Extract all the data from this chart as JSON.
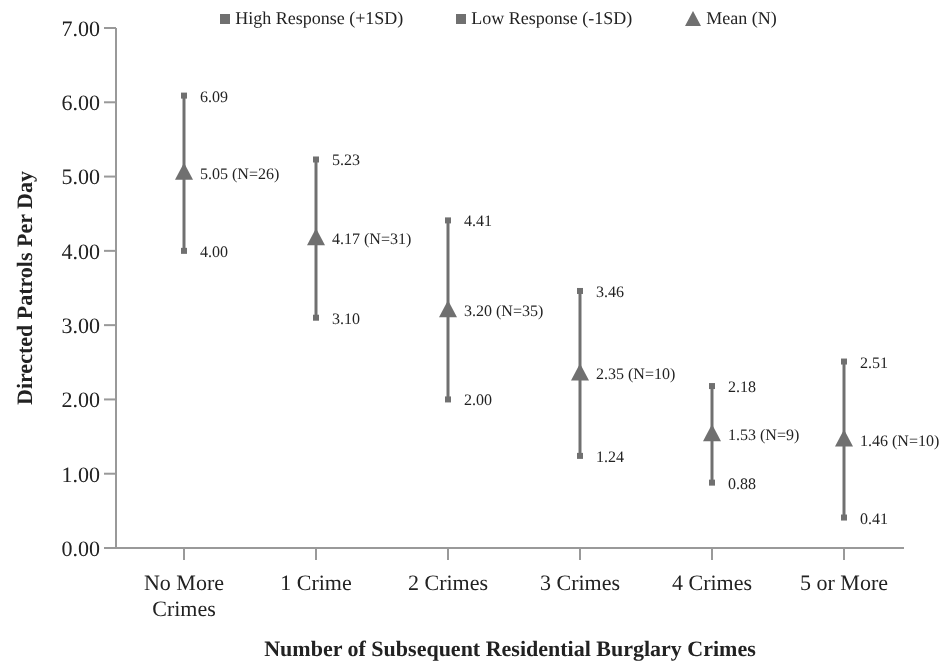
{
  "chart_data": {
    "type": "scatter",
    "xlabel": "Number of Subsequent Residential Burglary Crimes",
    "ylabel": "Directed Patrols Per Day",
    "categories": [
      "No More Crimes",
      "1 Crime",
      "2 Crimes",
      "3 Crimes",
      "4 Crimes",
      "5 or More"
    ],
    "ylim": [
      0,
      7
    ],
    "yticks": [
      {
        "value": 0,
        "label": "0.00"
      },
      {
        "value": 1,
        "label": "1.00"
      },
      {
        "value": 2,
        "label": "2.00"
      },
      {
        "value": 3,
        "label": "3.00"
      },
      {
        "value": 4,
        "label": "4.00"
      },
      {
        "value": 5,
        "label": "5.00"
      },
      {
        "value": 6,
        "label": "6.00"
      },
      {
        "value": 7,
        "label": "7.00"
      }
    ],
    "legend": "top",
    "series": [
      {
        "name": "High Response (+1SD)",
        "color": "#707070",
        "marker": "square",
        "values": [
          6.09,
          5.23,
          4.41,
          3.46,
          2.18,
          2.51
        ],
        "value_labels": [
          "6.09",
          "5.23",
          "4.41",
          "3.46",
          "2.18",
          "2.51"
        ]
      },
      {
        "name": "Low Response (-1SD)",
        "color": "#707070",
        "marker": "square",
        "values": [
          4.0,
          3.1,
          2.0,
          1.24,
          0.88,
          0.41
        ],
        "value_labels": [
          "4.00",
          "3.10",
          "2.00",
          "1.24",
          "0.88",
          "0.41"
        ]
      },
      {
        "name": "Mean (N)",
        "color": "#707070",
        "marker": "triangle",
        "values": [
          5.05,
          4.17,
          3.2,
          2.35,
          1.53,
          1.46
        ],
        "value_labels": [
          "5.05 (N=26)",
          "4.17 (N=31)",
          "3.20 (N=35)",
          "2.35 (N=10)",
          "1.53 (N=9)",
          "1.46 (N=10)"
        ]
      }
    ]
  }
}
